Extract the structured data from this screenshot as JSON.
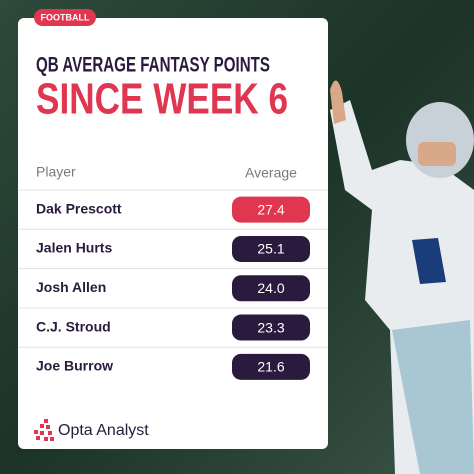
{
  "header": {
    "tag": "FOOTBALL",
    "title": "QB AVERAGE FANTASY POINTS",
    "subtitle": "SINCE WEEK 6"
  },
  "table": {
    "columns": [
      "Player",
      "Average"
    ],
    "rows": [
      [
        "Dak Prescott",
        "27.4"
      ],
      [
        "Jalen Hurts",
        "25.1"
      ],
      [
        "Josh Allen",
        "24.0"
      ],
      [
        "C.J. Stroud",
        "23.3"
      ],
      [
        "Joe Burrow",
        "21.6"
      ]
    ]
  },
  "footer": {
    "brand": "Opta Analyst"
  }
}
